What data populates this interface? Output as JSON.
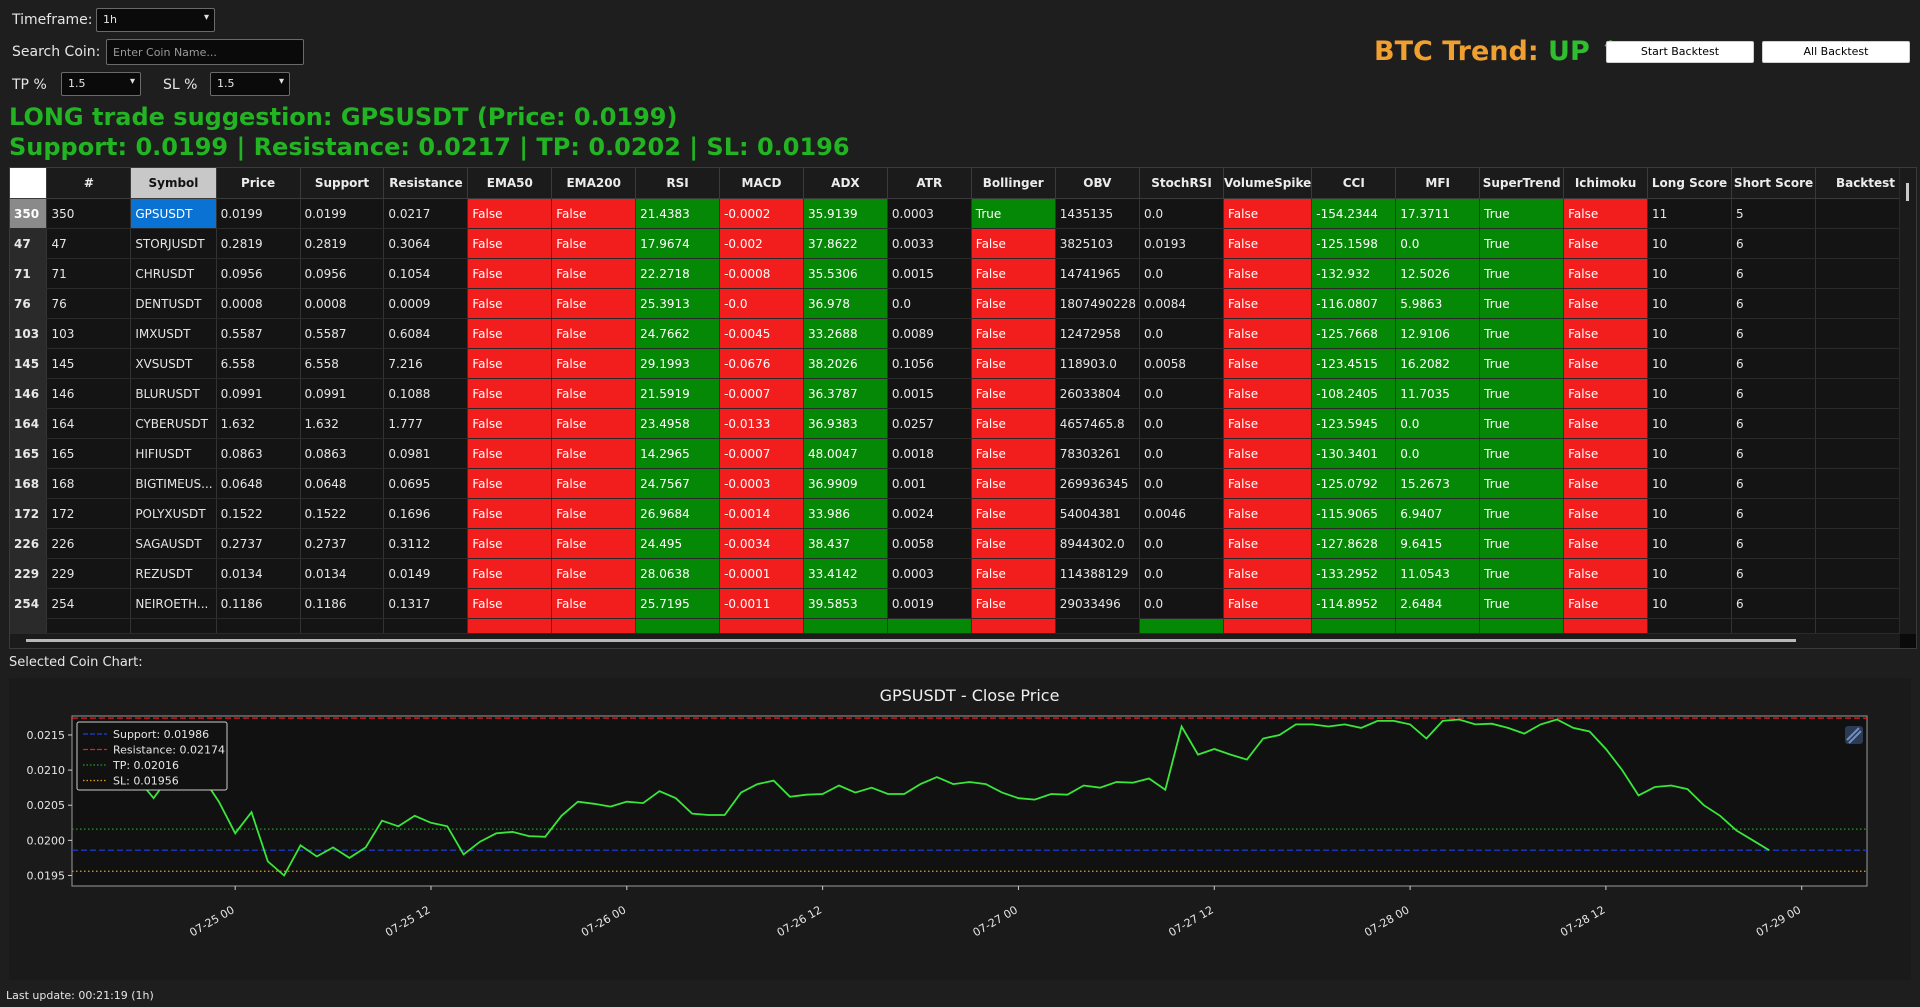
{
  "controls": {
    "timeframe_label": "Timeframe:",
    "timeframe_value": "1h",
    "search_label": "Search Coin:",
    "search_placeholder": "Enter Coin Name...",
    "tp_label": "TP %",
    "tp_value": "1.5",
    "sl_label": "SL %",
    "sl_value": "1.5"
  },
  "btc_trend": {
    "label": "BTC Trend:",
    "value": "UP ↑"
  },
  "buttons": {
    "start_backtest": "Start Backtest",
    "all_backtest": "All Backtest"
  },
  "suggestion": {
    "line1": "LONG trade suggestion: GPSUSDT (Price: 0.0199)",
    "line2": "Support: 0.0199 | Resistance: 0.0217 | TP: 0.0202 | SL: 0.0196"
  },
  "table": {
    "columns": [
      "#",
      "Symbol",
      "Price",
      "Support",
      "Resistance",
      "EMA50",
      "EMA200",
      "RSI",
      "MACD",
      "ADX",
      "ATR",
      "Bollinger",
      "OBV",
      "StochRSI",
      "VolumeSpike",
      "CCI",
      "MFI",
      "SuperTrend",
      "Ichimoku",
      "Long Score",
      "Short Score",
      "Backtest"
    ],
    "rows": [
      {
        "rh": "350",
        "c": [
          "350",
          "GPSUSDT",
          "0.0199",
          "0.0199",
          "0.0217",
          "False",
          "False",
          "21.4383",
          "-0.0002",
          "35.9139",
          "0.0003",
          "True",
          "1435135",
          "0.0",
          "False",
          "-154.2344",
          "17.3711",
          "True",
          "False",
          "11",
          "5",
          ""
        ]
      },
      {
        "rh": "47",
        "c": [
          "47",
          "STORJUSDT",
          "0.2819",
          "0.2819",
          "0.3064",
          "False",
          "False",
          "17.9674",
          "-0.002",
          "37.8622",
          "0.0033",
          "False",
          "3825103",
          "0.0193",
          "False",
          "-125.1598",
          "0.0",
          "True",
          "False",
          "10",
          "6",
          ""
        ]
      },
      {
        "rh": "71",
        "c": [
          "71",
          "CHRUSDT",
          "0.0956",
          "0.0956",
          "0.1054",
          "False",
          "False",
          "22.2718",
          "-0.0008",
          "35.5306",
          "0.0015",
          "False",
          "14741965",
          "0.0",
          "False",
          "-132.932",
          "12.5026",
          "True",
          "False",
          "10",
          "6",
          ""
        ]
      },
      {
        "rh": "76",
        "c": [
          "76",
          "DENTUSDT",
          "0.0008",
          "0.0008",
          "0.0009",
          "False",
          "False",
          "25.3913",
          "-0.0",
          "36.978",
          "0.0",
          "False",
          "1807490228",
          "0.0084",
          "False",
          "-116.0807",
          "5.9863",
          "True",
          "False",
          "10",
          "6",
          ""
        ]
      },
      {
        "rh": "103",
        "c": [
          "103",
          "IMXUSDT",
          "0.5587",
          "0.5587",
          "0.6084",
          "False",
          "False",
          "24.7662",
          "-0.0045",
          "33.2688",
          "0.0089",
          "False",
          "12472958",
          "0.0",
          "False",
          "-125.7668",
          "12.9106",
          "True",
          "False",
          "10",
          "6",
          ""
        ]
      },
      {
        "rh": "145",
        "c": [
          "145",
          "XVSUSDT",
          "6.558",
          "6.558",
          "7.216",
          "False",
          "False",
          "29.1993",
          "-0.0676",
          "38.2026",
          "0.1056",
          "False",
          "118903.0",
          "0.0058",
          "False",
          "-123.4515",
          "16.2082",
          "True",
          "False",
          "10",
          "6",
          ""
        ]
      },
      {
        "rh": "146",
        "c": [
          "146",
          "BLURUSDT",
          "0.0991",
          "0.0991",
          "0.1088",
          "False",
          "False",
          "21.5919",
          "-0.0007",
          "36.3787",
          "0.0015",
          "False",
          "26033804",
          "0.0",
          "False",
          "-108.2405",
          "11.7035",
          "True",
          "False",
          "10",
          "6",
          ""
        ]
      },
      {
        "rh": "164",
        "c": [
          "164",
          "CYBERUSDT",
          "1.632",
          "1.632",
          "1.777",
          "False",
          "False",
          "23.4958",
          "-0.0133",
          "36.9383",
          "0.0257",
          "False",
          "4657465.8",
          "0.0",
          "False",
          "-123.5945",
          "0.0",
          "True",
          "False",
          "10",
          "6",
          ""
        ]
      },
      {
        "rh": "165",
        "c": [
          "165",
          "HIFIUSDT",
          "0.0863",
          "0.0863",
          "0.0981",
          "False",
          "False",
          "14.2965",
          "-0.0007",
          "48.0047",
          "0.0018",
          "False",
          "78303261",
          "0.0",
          "False",
          "-130.3401",
          "0.0",
          "True",
          "False",
          "10",
          "6",
          ""
        ]
      },
      {
        "rh": "168",
        "c": [
          "168",
          "BIGTIMEUS...",
          "0.0648",
          "0.0648",
          "0.0695",
          "False",
          "False",
          "24.7567",
          "-0.0003",
          "36.9909",
          "0.001",
          "False",
          "269936345",
          "0.0",
          "False",
          "-125.0792",
          "15.2673",
          "True",
          "False",
          "10",
          "6",
          ""
        ]
      },
      {
        "rh": "172",
        "c": [
          "172",
          "POLYXUSDT",
          "0.1522",
          "0.1522",
          "0.1696",
          "False",
          "False",
          "26.9684",
          "-0.0014",
          "33.986",
          "0.0024",
          "False",
          "54004381",
          "0.0046",
          "False",
          "-115.9065",
          "6.9407",
          "True",
          "False",
          "10",
          "6",
          ""
        ]
      },
      {
        "rh": "226",
        "c": [
          "226",
          "SAGAUSDT",
          "0.2737",
          "0.2737",
          "0.3112",
          "False",
          "False",
          "24.495",
          "-0.0034",
          "38.437",
          "0.0058",
          "False",
          "8944302.0",
          "0.0",
          "False",
          "-127.8628",
          "9.6415",
          "True",
          "False",
          "10",
          "6",
          ""
        ]
      },
      {
        "rh": "229",
        "c": [
          "229",
          "REZUSDT",
          "0.0134",
          "0.0134",
          "0.0149",
          "False",
          "False",
          "28.0638",
          "-0.0001",
          "33.4142",
          "0.0003",
          "False",
          "114388129",
          "0.0",
          "False",
          "-133.2952",
          "11.0543",
          "True",
          "False",
          "10",
          "6",
          ""
        ]
      },
      {
        "rh": "254",
        "c": [
          "254",
          "NEIROETH...",
          "0.1186",
          "0.1186",
          "0.1317",
          "False",
          "False",
          "25.7195",
          "-0.0011",
          "39.5853",
          "0.0019",
          "False",
          "29033496",
          "0.0",
          "False",
          "-114.8952",
          "2.6484",
          "True",
          "False",
          "10",
          "6",
          ""
        ]
      }
    ]
  },
  "chart_section_label": "Selected Coin Chart:",
  "chart_data": {
    "type": "line",
    "title": "GPSUSDT - Close Price",
    "ylim": [
      0.01935,
      0.02177
    ],
    "yticks": [
      0.0195,
      0.02,
      0.0205,
      0.021,
      0.0215
    ],
    "ytick_labels": [
      "0.0195",
      "0.0200",
      "0.0205",
      "0.0210",
      "0.0215"
    ],
    "xticks_hours": [
      0,
      12,
      24,
      36,
      48,
      60,
      72,
      84,
      96
    ],
    "xtick_labels": [
      "07-25 00",
      "07-25 12",
      "07-26 00",
      "07-26 12",
      "07-27 00",
      "07-27 12",
      "07-28 00",
      "07-28 12",
      "07-29 00"
    ],
    "x_unit": "hours since 07-25 00",
    "series": [
      {
        "name": "Close Price",
        "color": "#39e639",
        "x": [
          -6,
          -5,
          -4,
          -3,
          -2,
          -1,
          0,
          1,
          2,
          3,
          4,
          5,
          6,
          7,
          8,
          9,
          10,
          11,
          12,
          13,
          14,
          15,
          16,
          17,
          18,
          19,
          20,
          21,
          22,
          23,
          24,
          25,
          26,
          27,
          28,
          29,
          30,
          31,
          32,
          33,
          34,
          35,
          36,
          37,
          38,
          39,
          40,
          41,
          42,
          43,
          44,
          45,
          46,
          47,
          48,
          49,
          50,
          51,
          52,
          53,
          54,
          55,
          56,
          57,
          58,
          59,
          60,
          61,
          62,
          63,
          64,
          65,
          66,
          67,
          68,
          69,
          70,
          71,
          72,
          73,
          74,
          75,
          76,
          77,
          78,
          79,
          80,
          81,
          82,
          83,
          84,
          85,
          86,
          87,
          88,
          89,
          90,
          91,
          92,
          93,
          94
        ],
        "y": [
          0.02088,
          0.0206,
          0.02092,
          0.02087,
          0.0209,
          0.02055,
          0.0201,
          0.0204,
          0.0197,
          0.0195,
          0.01993,
          0.01977,
          0.0199,
          0.01975,
          0.0199,
          0.02028,
          0.0202,
          0.02035,
          0.02025,
          0.0202,
          0.0198,
          0.01998,
          0.0201,
          0.02012,
          0.02006,
          0.02005,
          0.02035,
          0.02055,
          0.02052,
          0.02048,
          0.02055,
          0.02053,
          0.0207,
          0.0206,
          0.02038,
          0.02036,
          0.02036,
          0.02068,
          0.0208,
          0.02085,
          0.02062,
          0.02065,
          0.02066,
          0.02078,
          0.02068,
          0.02075,
          0.02066,
          0.02066,
          0.0208,
          0.0209,
          0.0208,
          0.02083,
          0.0208,
          0.02068,
          0.0206,
          0.02058,
          0.02066,
          0.02065,
          0.02078,
          0.02075,
          0.02083,
          0.02082,
          0.02088,
          0.02072,
          0.02162,
          0.02122,
          0.0213,
          0.02122,
          0.02115,
          0.02145,
          0.0215,
          0.02165,
          0.02165,
          0.02162,
          0.02165,
          0.0216,
          0.0217,
          0.0217,
          0.02165,
          0.02145,
          0.0217,
          0.02172,
          0.02165,
          0.02166,
          0.0216,
          0.02152,
          0.02165,
          0.02172,
          0.0216,
          0.02155,
          0.0213,
          0.021,
          0.02064,
          0.02076,
          0.02078,
          0.02073,
          0.0205,
          0.02035,
          0.02014,
          0.02,
          0.01986
        ]
      },
      {
        "name": "Support: 0.01986",
        "value": 0.01986,
        "color": "#2040e0",
        "style": "dashed"
      },
      {
        "name": "Resistance: 0.02174",
        "value": 0.02174,
        "color": "#e02020",
        "style": "dashed"
      },
      {
        "name": "TP: 0.02016",
        "value": 0.02016,
        "color": "#22a022",
        "style": "dotted"
      },
      {
        "name": "SL: 0.01956",
        "value": 0.01956,
        "color": "#e0a020",
        "style": "dotted"
      }
    ],
    "legend": "top-left",
    "grid": false
  },
  "status": "Last update: 00:21:19 (1h)"
}
